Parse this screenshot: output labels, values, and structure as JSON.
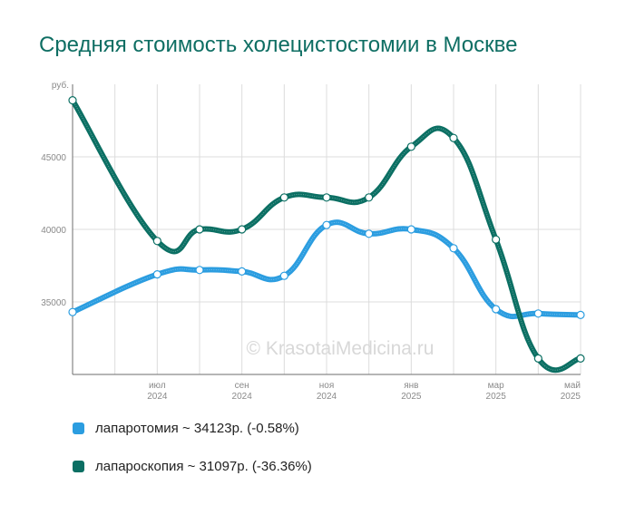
{
  "chart_data": {
    "type": "line",
    "title": "Средняя стоимость холецистостомии в Москве",
    "xlabel": "",
    "ylabel": "руб.",
    "x": [
      "2024-05",
      "2024-07",
      "2024-08",
      "2024-09",
      "2024-10",
      "2024-11",
      "2024-12",
      "2025-01",
      "2025-02",
      "2025-03",
      "2025-04",
      "2025-05"
    ],
    "x_tick_labels": [
      {
        "month": "июл",
        "year": "2024"
      },
      {
        "month": "сен",
        "year": "2024"
      },
      {
        "month": "ноя",
        "year": "2024"
      },
      {
        "month": "янв",
        "year": "2025"
      },
      {
        "month": "мар",
        "year": "2025"
      },
      {
        "month": "май",
        "year": "2025"
      }
    ],
    "y_ticks": [
      35000,
      40000,
      45000
    ],
    "ylim": [
      30000,
      50000
    ],
    "grid": true,
    "legend_position": "bottom-left",
    "series": [
      {
        "name": "лапаротомия",
        "color": "#2b9de0",
        "values": [
          34300,
          36900,
          37200,
          37100,
          36800,
          40300,
          39700,
          40000,
          38700,
          34500,
          34200,
          34100
        ]
      },
      {
        "name": "лапароскопия",
        "color": "#0b6f63",
        "values": [
          48900,
          39200,
          40000,
          40000,
          42200,
          42200,
          42200,
          45700,
          46300,
          39300,
          31100,
          31100
        ]
      }
    ],
    "legend": [
      {
        "text": "лапаротомия ~ 34123р. (-0.58%)",
        "color": "#2b9de0"
      },
      {
        "text": "лапароскопия ~ 31097р. (-36.36%)",
        "color": "#0b6f63"
      }
    ],
    "watermark": "© KrasotaiMedicina.ru"
  }
}
